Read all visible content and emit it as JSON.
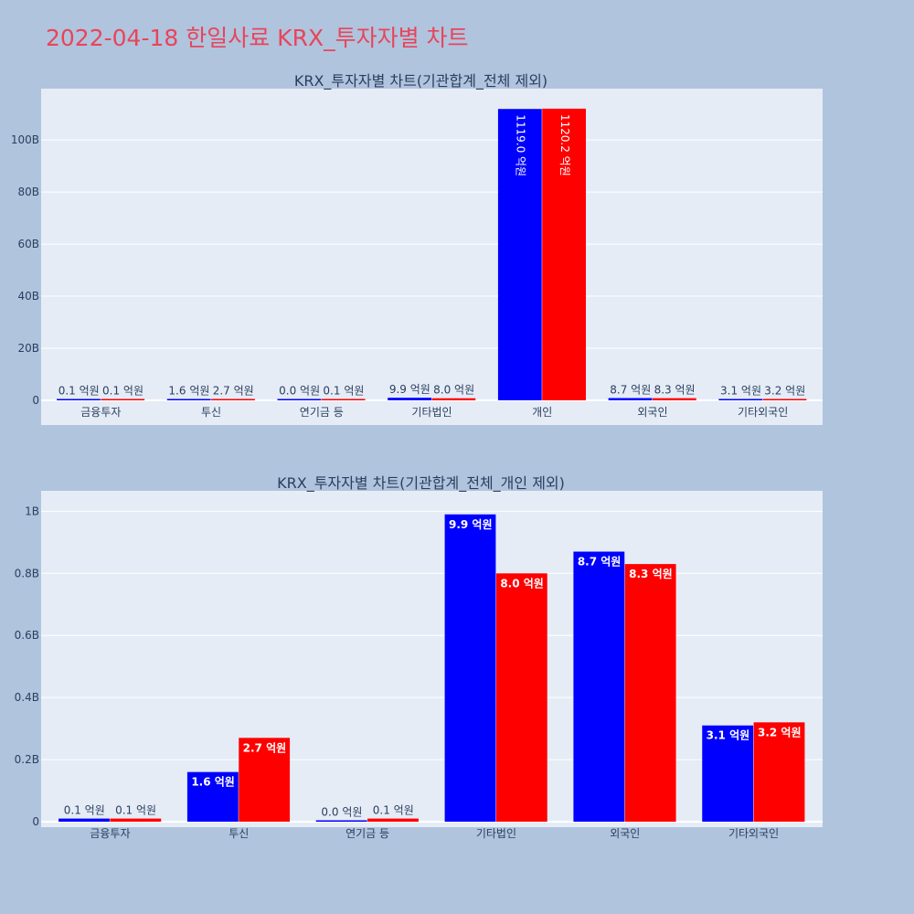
{
  "page_title": "2022-04-18 한일사료 KRX_투자자별 차트",
  "colors": {
    "background": "#b0c4de",
    "plot_bg": "#e5ecf6",
    "title": "#e8455a",
    "series1": "#0000ff",
    "series2": "#ff0000",
    "text": "#2a3f5f"
  },
  "chart_data": [
    {
      "type": "bar",
      "title": "KRX_투자자별 차트(기관합계_전체 제외)",
      "categories": [
        "금융투자",
        "투신",
        "연기금 등",
        "기타법인",
        "개인",
        "외국인",
        "기타외국인"
      ],
      "y_ticks": [
        {
          "value": 0,
          "label": "0"
        },
        {
          "value": 20000000000,
          "label": "20B"
        },
        {
          "value": 40000000000,
          "label": "40B"
        },
        {
          "value": 60000000000,
          "label": "60B"
        },
        {
          "value": 80000000000,
          "label": "80B"
        },
        {
          "value": 100000000000,
          "label": "100B"
        }
      ],
      "ylim": [
        0,
        119000000000
      ],
      "grid": true,
      "series": [
        {
          "color": "#0000ff",
          "values": [
            10000000,
            160000000,
            0,
            990000000,
            111900000000,
            870000000,
            310000000
          ],
          "labels": [
            "0.1 억원",
            "1.6 억원",
            "0.0 억원",
            "9.9 억원",
            "1119.0 억원",
            "8.7 억원",
            "3.1 억원"
          ]
        },
        {
          "color": "#ff0000",
          "values": [
            10000000,
            270000000,
            10000000,
            800000000,
            112020000000,
            830000000,
            320000000
          ],
          "labels": [
            "0.1 억원",
            "2.7 억원",
            "0.1 억원",
            "8.0 억원",
            "1120.2 억원",
            "8.3 억원",
            "3.2 억원"
          ]
        }
      ]
    },
    {
      "type": "bar",
      "title": "KRX_투자자별 차트(기관합계_전체_개인 제외)",
      "categories": [
        "금융투자",
        "투신",
        "연기금 등",
        "기타법인",
        "외국인",
        "기타외국인"
      ],
      "y_ticks": [
        {
          "value": 0,
          "label": "0"
        },
        {
          "value": 200000000,
          "label": "0.2B"
        },
        {
          "value": 400000000,
          "label": "0.4B"
        },
        {
          "value": 600000000,
          "label": "0.6B"
        },
        {
          "value": 800000000,
          "label": "0.8B"
        },
        {
          "value": 1000000000,
          "label": "1B"
        }
      ],
      "ylim": [
        0,
        1060000000
      ],
      "grid": true,
      "series": [
        {
          "color": "#0000ff",
          "values": [
            10000000,
            160000000,
            0,
            990000000,
            870000000,
            310000000
          ],
          "labels": [
            "0.1 억원",
            "1.6 억원",
            "0.0 억원",
            "9.9 억원",
            "8.7 억원",
            "3.1 억원"
          ]
        },
        {
          "color": "#ff0000",
          "values": [
            10000000,
            270000000,
            10000000,
            800000000,
            830000000,
            320000000
          ],
          "labels": [
            "0.1 억원",
            "2.7 억원",
            "0.1 억원",
            "8.0 억원",
            "8.3 억원",
            "3.2 억원"
          ]
        }
      ]
    }
  ]
}
